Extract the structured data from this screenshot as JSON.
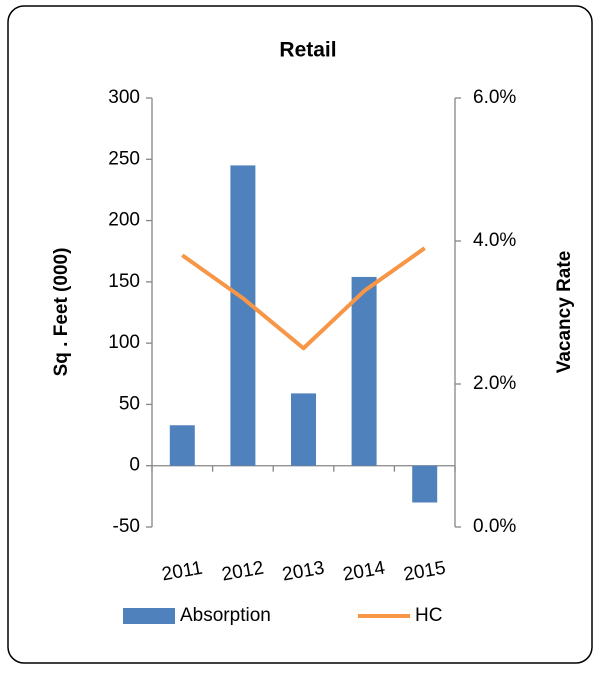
{
  "chart_data": {
    "type": "bar",
    "title": "Retail",
    "categories": [
      "2011",
      "2012",
      "2013",
      "2014",
      "2015"
    ],
    "y_label": "Sq . Feet (000)",
    "y2_label": "Vacancy Rate",
    "series": [
      {
        "name": "Absorption",
        "type": "bar",
        "color": "#4f81bd",
        "values": [
          33,
          245,
          59,
          154,
          -30
        ]
      },
      {
        "name": "HC",
        "type": "line",
        "axis": "y2",
        "color": "#f79646",
        "values": [
          3.8,
          3.2,
          2.5,
          3.3,
          3.9
        ]
      }
    ],
    "ylim": [
      -50,
      300
    ],
    "yticks": [
      -50,
      0,
      50,
      100,
      150,
      200,
      250,
      300
    ],
    "y2lim": [
      0,
      6
    ],
    "y2ticks": [
      {
        "value": 0,
        "label": "0.0%"
      },
      {
        "value": 2,
        "label": "2.0%"
      },
      {
        "value": 4,
        "label": "4.0%"
      },
      {
        "value": 6,
        "label": "6.0%"
      }
    ],
    "legend": "bottom"
  }
}
